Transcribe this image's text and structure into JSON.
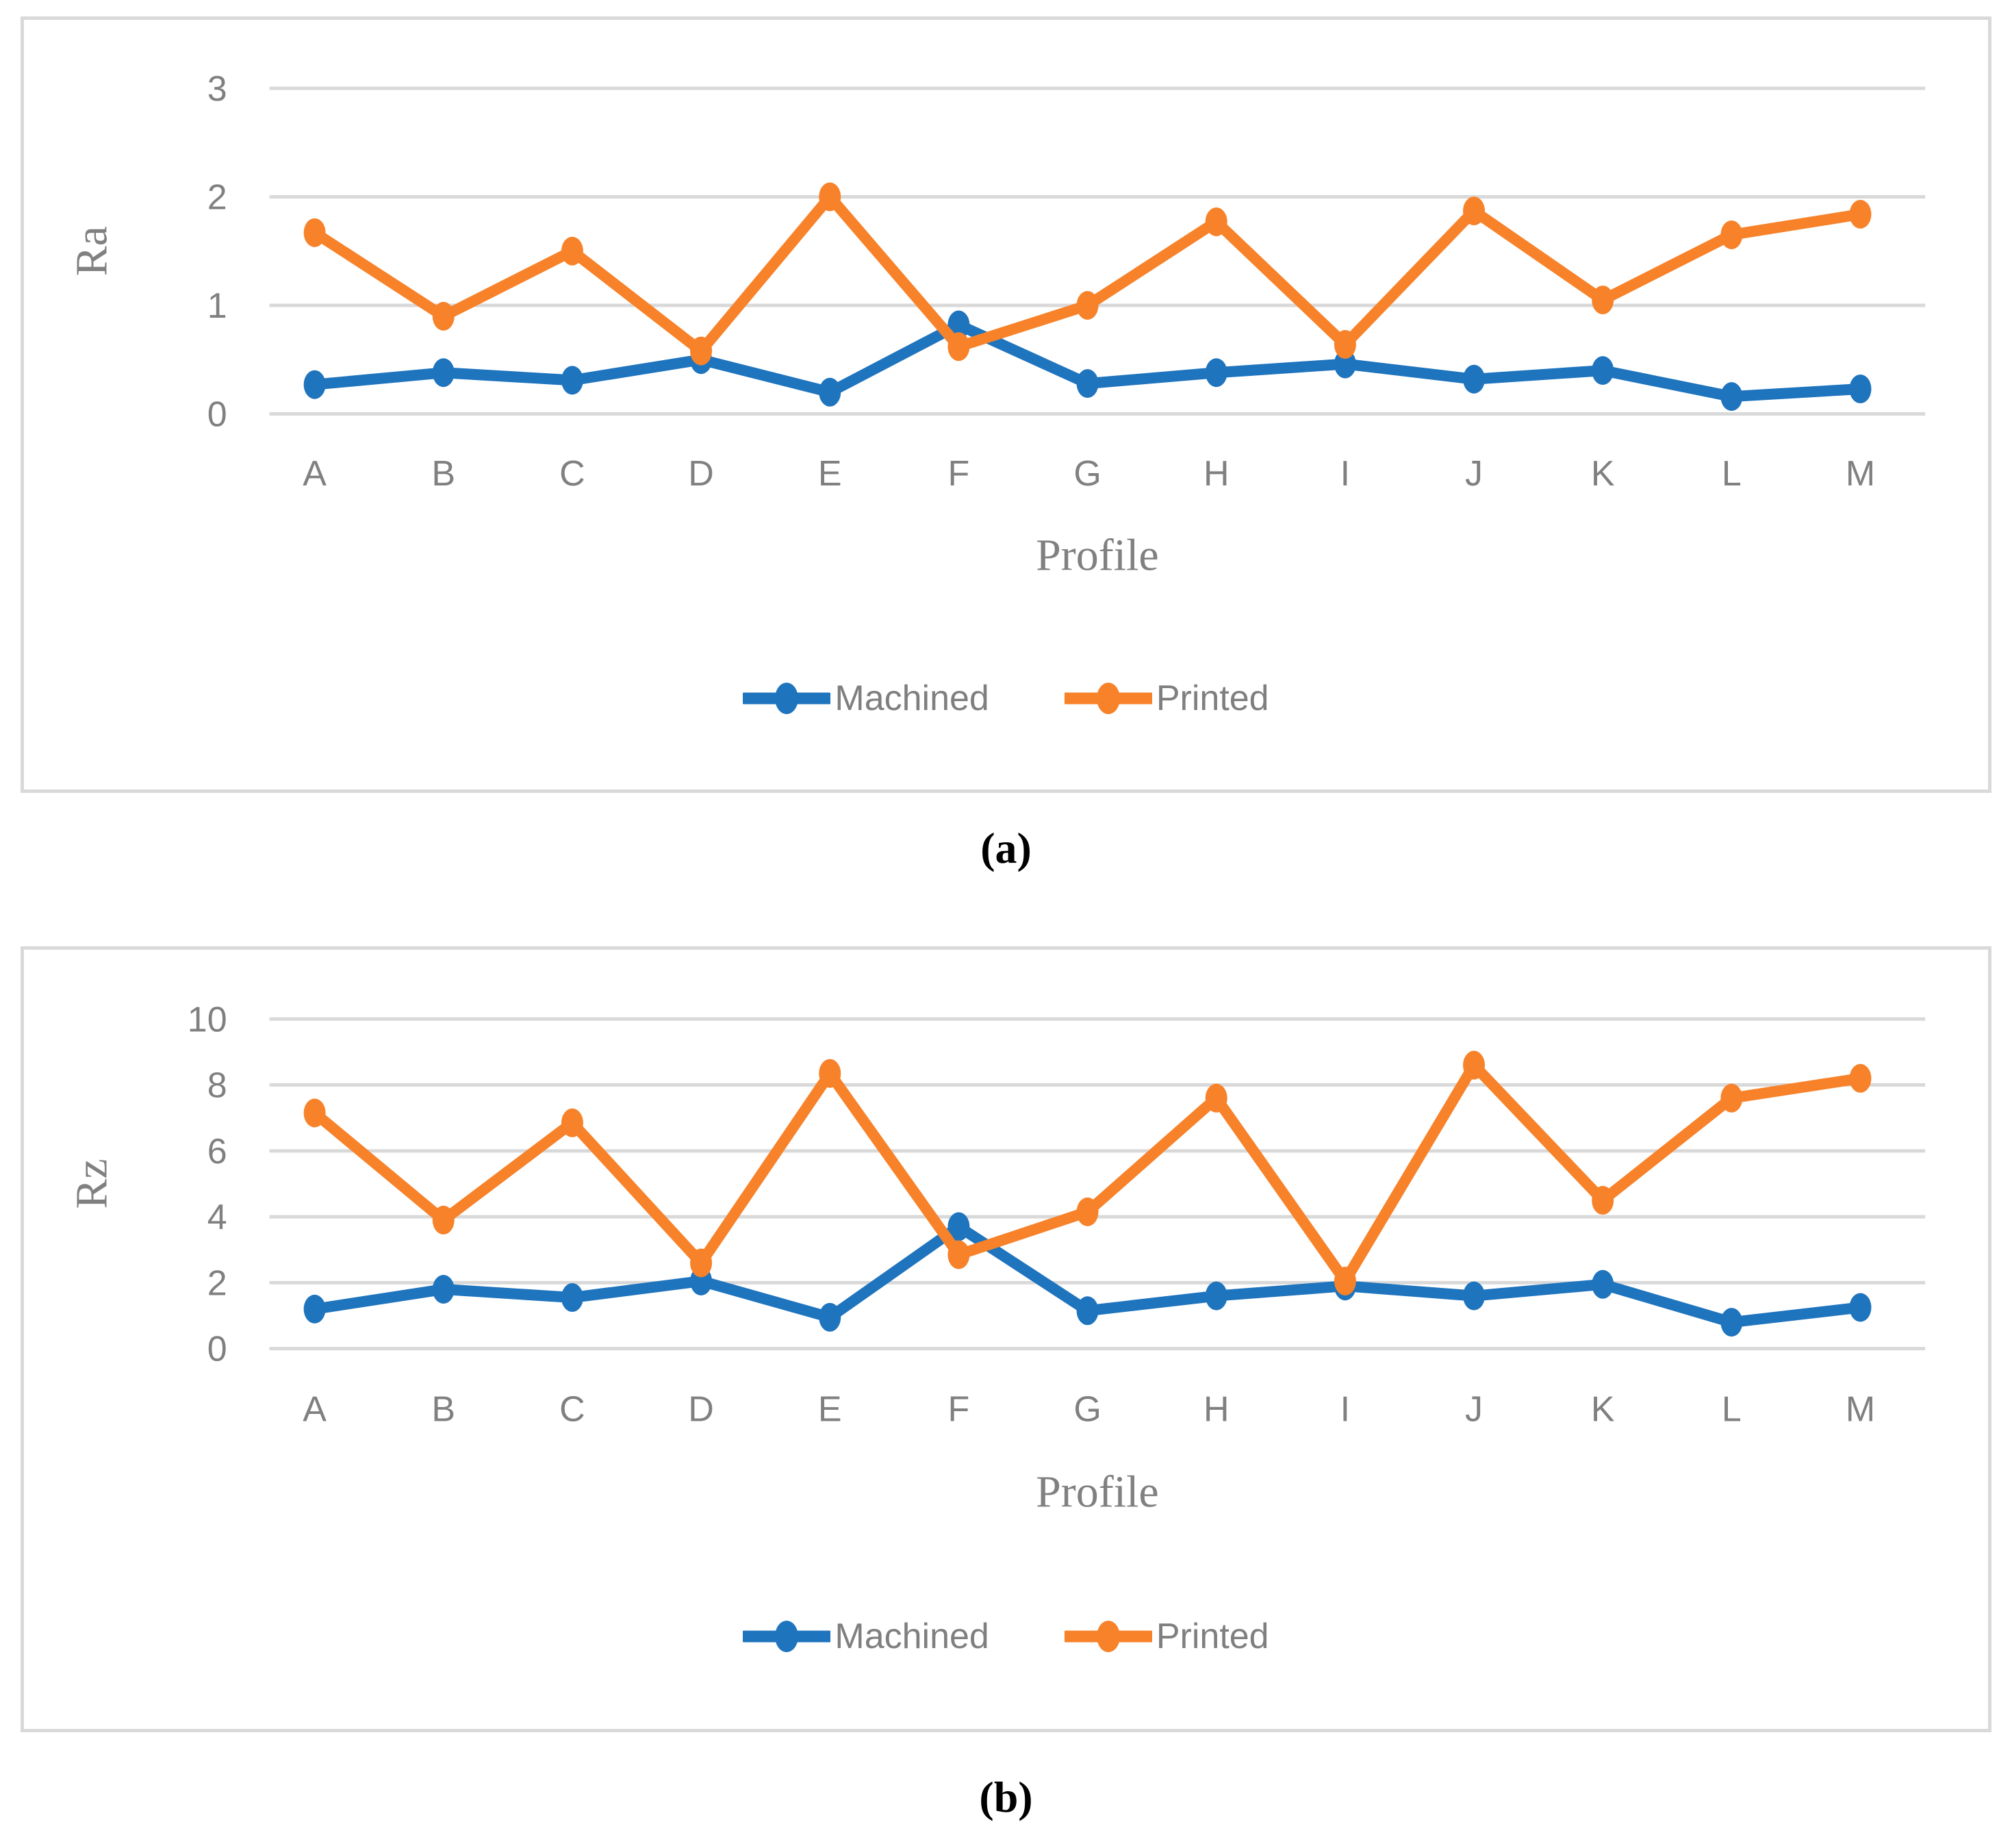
{
  "figure": {
    "captions": {
      "a": "(a)",
      "b": "(b)"
    }
  },
  "colors": {
    "machined": "#1F74BE",
    "printed": "#F7822A",
    "grid": "#D9D9D9",
    "panel_border": "#D9D9D9",
    "axis_text": "#808080",
    "legend_text": "#7F7F7F",
    "caption_text": "#000000"
  },
  "chart_data": [
    {
      "id": "a",
      "type": "line",
      "caption": "(a)",
      "xlabel": "Profile",
      "ylabel": "Ra",
      "categories": [
        "A",
        "B",
        "C",
        "D",
        "E",
        "F",
        "G",
        "H",
        "I",
        "J",
        "K",
        "L",
        "M"
      ],
      "ylim": [
        0,
        3
      ],
      "yticks": [
        0,
        1,
        2,
        3
      ],
      "grid": true,
      "legend_position": "bottom",
      "series": [
        {
          "name": "Machined",
          "color": "#1F74BE",
          "values": [
            0.27,
            0.38,
            0.31,
            0.5,
            0.2,
            0.82,
            0.28,
            0.38,
            0.46,
            0.32,
            0.4,
            0.16,
            0.23
          ]
        },
        {
          "name": "Printed",
          "color": "#F7822A",
          "values": [
            1.67,
            0.9,
            1.5,
            0.58,
            2.0,
            0.62,
            1.0,
            1.77,
            0.64,
            1.87,
            1.05,
            1.65,
            1.84
          ]
        }
      ]
    },
    {
      "id": "b",
      "type": "line",
      "caption": "(b)",
      "xlabel": "Profile",
      "ylabel": "Rz",
      "categories": [
        "A",
        "B",
        "C",
        "D",
        "E",
        "F",
        "G",
        "H",
        "I",
        "J",
        "K",
        "L",
        "M"
      ],
      "ylim": [
        0,
        10
      ],
      "yticks": [
        0,
        2,
        4,
        6,
        8,
        10
      ],
      "grid": true,
      "legend_position": "bottom",
      "series": [
        {
          "name": "Machined",
          "color": "#1F74BE",
          "values": [
            1.2,
            1.8,
            1.55,
            2.05,
            0.95,
            3.7,
            1.15,
            1.6,
            1.9,
            1.6,
            1.95,
            0.8,
            1.25
          ]
        },
        {
          "name": "Printed",
          "color": "#F7822A",
          "values": [
            7.15,
            3.9,
            6.85,
            2.6,
            8.35,
            2.85,
            4.15,
            7.6,
            2.05,
            8.6,
            4.5,
            7.6,
            8.2
          ]
        }
      ]
    }
  ]
}
